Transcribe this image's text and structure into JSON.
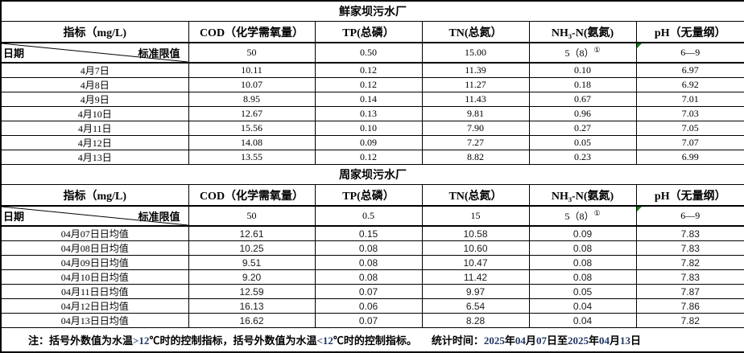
{
  "colors": {
    "border": "#000000",
    "text": "#000000",
    "note_number_text": "#1F3864",
    "corner_flag_green": "#107C10",
    "background": "#FFFFFF"
  },
  "plants": [
    {
      "title": "鲜家坝污水厂",
      "header": {
        "indicator": "指标（mg/L)",
        "cod": "COD（化学需氧量）",
        "tp": "TP(总磷）",
        "tn": "TN(总氮）",
        "nh3": "NH₃-N(氨氮)",
        "ph": "pH（无量纲）"
      },
      "corner": {
        "date_label": "日期",
        "limit_label": "标准限值"
      },
      "limits": {
        "cod": "50",
        "tp": "0.50",
        "tn": "15.00",
        "nh3": "5（8）",
        "nh3_sup": "①",
        "ph": "6—9",
        "ph_flag": true
      },
      "rows": [
        {
          "date": "4月7日",
          "cod": "10.11",
          "tp": "0.12",
          "tn": "11.39",
          "nh3": "0.10",
          "ph": "6.97"
        },
        {
          "date": "4月8日",
          "cod": "10.07",
          "tp": "0.12",
          "tn": "11.27",
          "nh3": "0.18",
          "ph": "6.92"
        },
        {
          "date": "4月9日",
          "cod": "8.95",
          "tp": "0.14",
          "tn": "11.43",
          "nh3": "0.67",
          "ph": "7.01"
        },
        {
          "date": "4月10日",
          "cod": "12.67",
          "tp": "0.13",
          "tn": "9.81",
          "nh3": "0.96",
          "ph": "7.03"
        },
        {
          "date": "4月11日",
          "cod": "15.56",
          "tp": "0.10",
          "tn": "7.90",
          "nh3": "0.27",
          "ph": "7.05"
        },
        {
          "date": "4月12日",
          "cod": "14.08",
          "tp": "0.09",
          "tn": "7.27",
          "nh3": "0.05",
          "ph": "7.07"
        },
        {
          "date": "4月13日",
          "cod": "13.55",
          "tp": "0.12",
          "tn": "8.82",
          "nh3": "0.23",
          "ph": "6.99"
        }
      ]
    },
    {
      "title": "周家坝污水厂",
      "header": {
        "indicator": "指标（mg/L)",
        "cod": "COD（化学需氧量）",
        "tp": "TP(总磷）",
        "tn": "TN(总氮）",
        "nh3": "NH₃-N(氨氮)",
        "ph": "pH（无量纲）"
      },
      "corner": {
        "date_label": "日期",
        "limit_label": "标准限值"
      },
      "limits": {
        "cod": "50",
        "tp": "0.5",
        "tn": "15",
        "nh3": "5（8）",
        "nh3_sup": "①",
        "ph": "6—9",
        "ph_flag": true
      },
      "rows": [
        {
          "date": "04月07日日均值",
          "cod": "12.61",
          "tp": "0.15",
          "tn": "10.58",
          "nh3": "0.09",
          "ph": "7.83"
        },
        {
          "date": "04月08日日均值",
          "cod": "10.25",
          "tp": "0.08",
          "tn": "10.60",
          "nh3": "0.08",
          "ph": "7.83"
        },
        {
          "date": "04月09日日均值",
          "cod": "9.51",
          "tp": "0.08",
          "tn": "10.47",
          "nh3": "0.08",
          "ph": "7.82"
        },
        {
          "date": "04月10日日均值",
          "cod": "9.20",
          "tp": "0.08",
          "tn": "11.42",
          "nh3": "0.08",
          "ph": "7.83"
        },
        {
          "date": "04月11日日均值",
          "cod": "12.59",
          "tp": "0.07",
          "tn": "9.97",
          "nh3": "0.05",
          "ph": "7.87"
        },
        {
          "date": "04月12日日均值",
          "cod": "16.13",
          "tp": "0.06",
          "tn": "6.54",
          "nh3": "0.04",
          "ph": "7.86"
        },
        {
          "date": "04月13日日均值",
          "cod": "16.62",
          "tp": "0.07",
          "tn": "8.28",
          "nh3": "0.04",
          "ph": "7.82"
        }
      ]
    }
  ],
  "note": {
    "segments": [
      {
        "t": "注：括号外数值为水温",
        "num": false,
        "gap": false
      },
      {
        "t": ">12",
        "num": true,
        "gap": false
      },
      {
        "t": "℃时的控制指标，括号外数值为水温",
        "num": false,
        "gap": false
      },
      {
        "t": "<12",
        "num": true,
        "gap": false
      },
      {
        "t": "℃时的控制指标。",
        "num": false,
        "gap": false
      },
      {
        "t": "统计时间：",
        "num": false,
        "gap": true
      },
      {
        "t": "2025",
        "num": true,
        "gap": false
      },
      {
        "t": "年",
        "num": false,
        "gap": false
      },
      {
        "t": "04",
        "num": true,
        "gap": false
      },
      {
        "t": "月",
        "num": false,
        "gap": false
      },
      {
        "t": "07",
        "num": true,
        "gap": false
      },
      {
        "t": "日至",
        "num": false,
        "gap": false
      },
      {
        "t": "2025",
        "num": true,
        "gap": false
      },
      {
        "t": "年",
        "num": false,
        "gap": false
      },
      {
        "t": "04",
        "num": true,
        "gap": false
      },
      {
        "t": "月",
        "num": false,
        "gap": false
      },
      {
        "t": "13",
        "num": true,
        "gap": false
      },
      {
        "t": "日",
        "num": false,
        "gap": false
      }
    ]
  }
}
